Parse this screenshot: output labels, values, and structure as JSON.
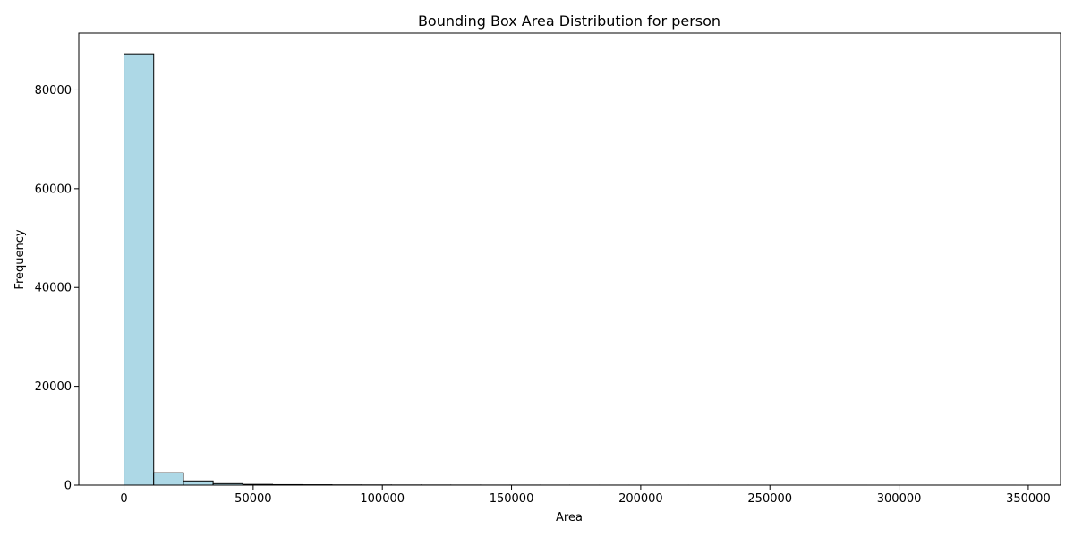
{
  "chart_data": {
    "type": "histogram",
    "title": "Bounding Box Area Distribution for person",
    "xlabel": "Area",
    "ylabel": "Frequency",
    "xlim": [
      -17500,
      362500
    ],
    "ylim": [
      0,
      91500
    ],
    "grid": false,
    "bar_color": "#add8e6",
    "edge_color": "#000000",
    "bin_width": 11500,
    "bin_starts": [
      0,
      11500,
      23000,
      34500,
      46000,
      57500,
      69000,
      80500,
      92000,
      103500,
      115000,
      126500,
      138000,
      149500,
      161000,
      172500,
      184000,
      195500,
      207000,
      218500,
      230000,
      241500,
      253000,
      264500,
      276000,
      287500,
      299000,
      310500,
      322000,
      333500
    ],
    "values": [
      87300,
      2500,
      850,
      300,
      150,
      100,
      80,
      50,
      40,
      30,
      25,
      20,
      15,
      12,
      10,
      8,
      6,
      5,
      4,
      4,
      3,
      3,
      2,
      2,
      2,
      1,
      1,
      1,
      1,
      1
    ],
    "x_ticks": [
      {
        "value": 0,
        "label": "0"
      },
      {
        "value": 50000,
        "label": "50000"
      },
      {
        "value": 100000,
        "label": "100000"
      },
      {
        "value": 150000,
        "label": "150000"
      },
      {
        "value": 200000,
        "label": "200000"
      },
      {
        "value": 250000,
        "label": "250000"
      },
      {
        "value": 300000,
        "label": "300000"
      },
      {
        "value": 350000,
        "label": "350000"
      }
    ],
    "y_ticks": [
      {
        "value": 0,
        "label": "0"
      },
      {
        "value": 20000,
        "label": "20000"
      },
      {
        "value": 40000,
        "label": "40000"
      },
      {
        "value": 60000,
        "label": "60000"
      },
      {
        "value": 80000,
        "label": "80000"
      }
    ]
  }
}
